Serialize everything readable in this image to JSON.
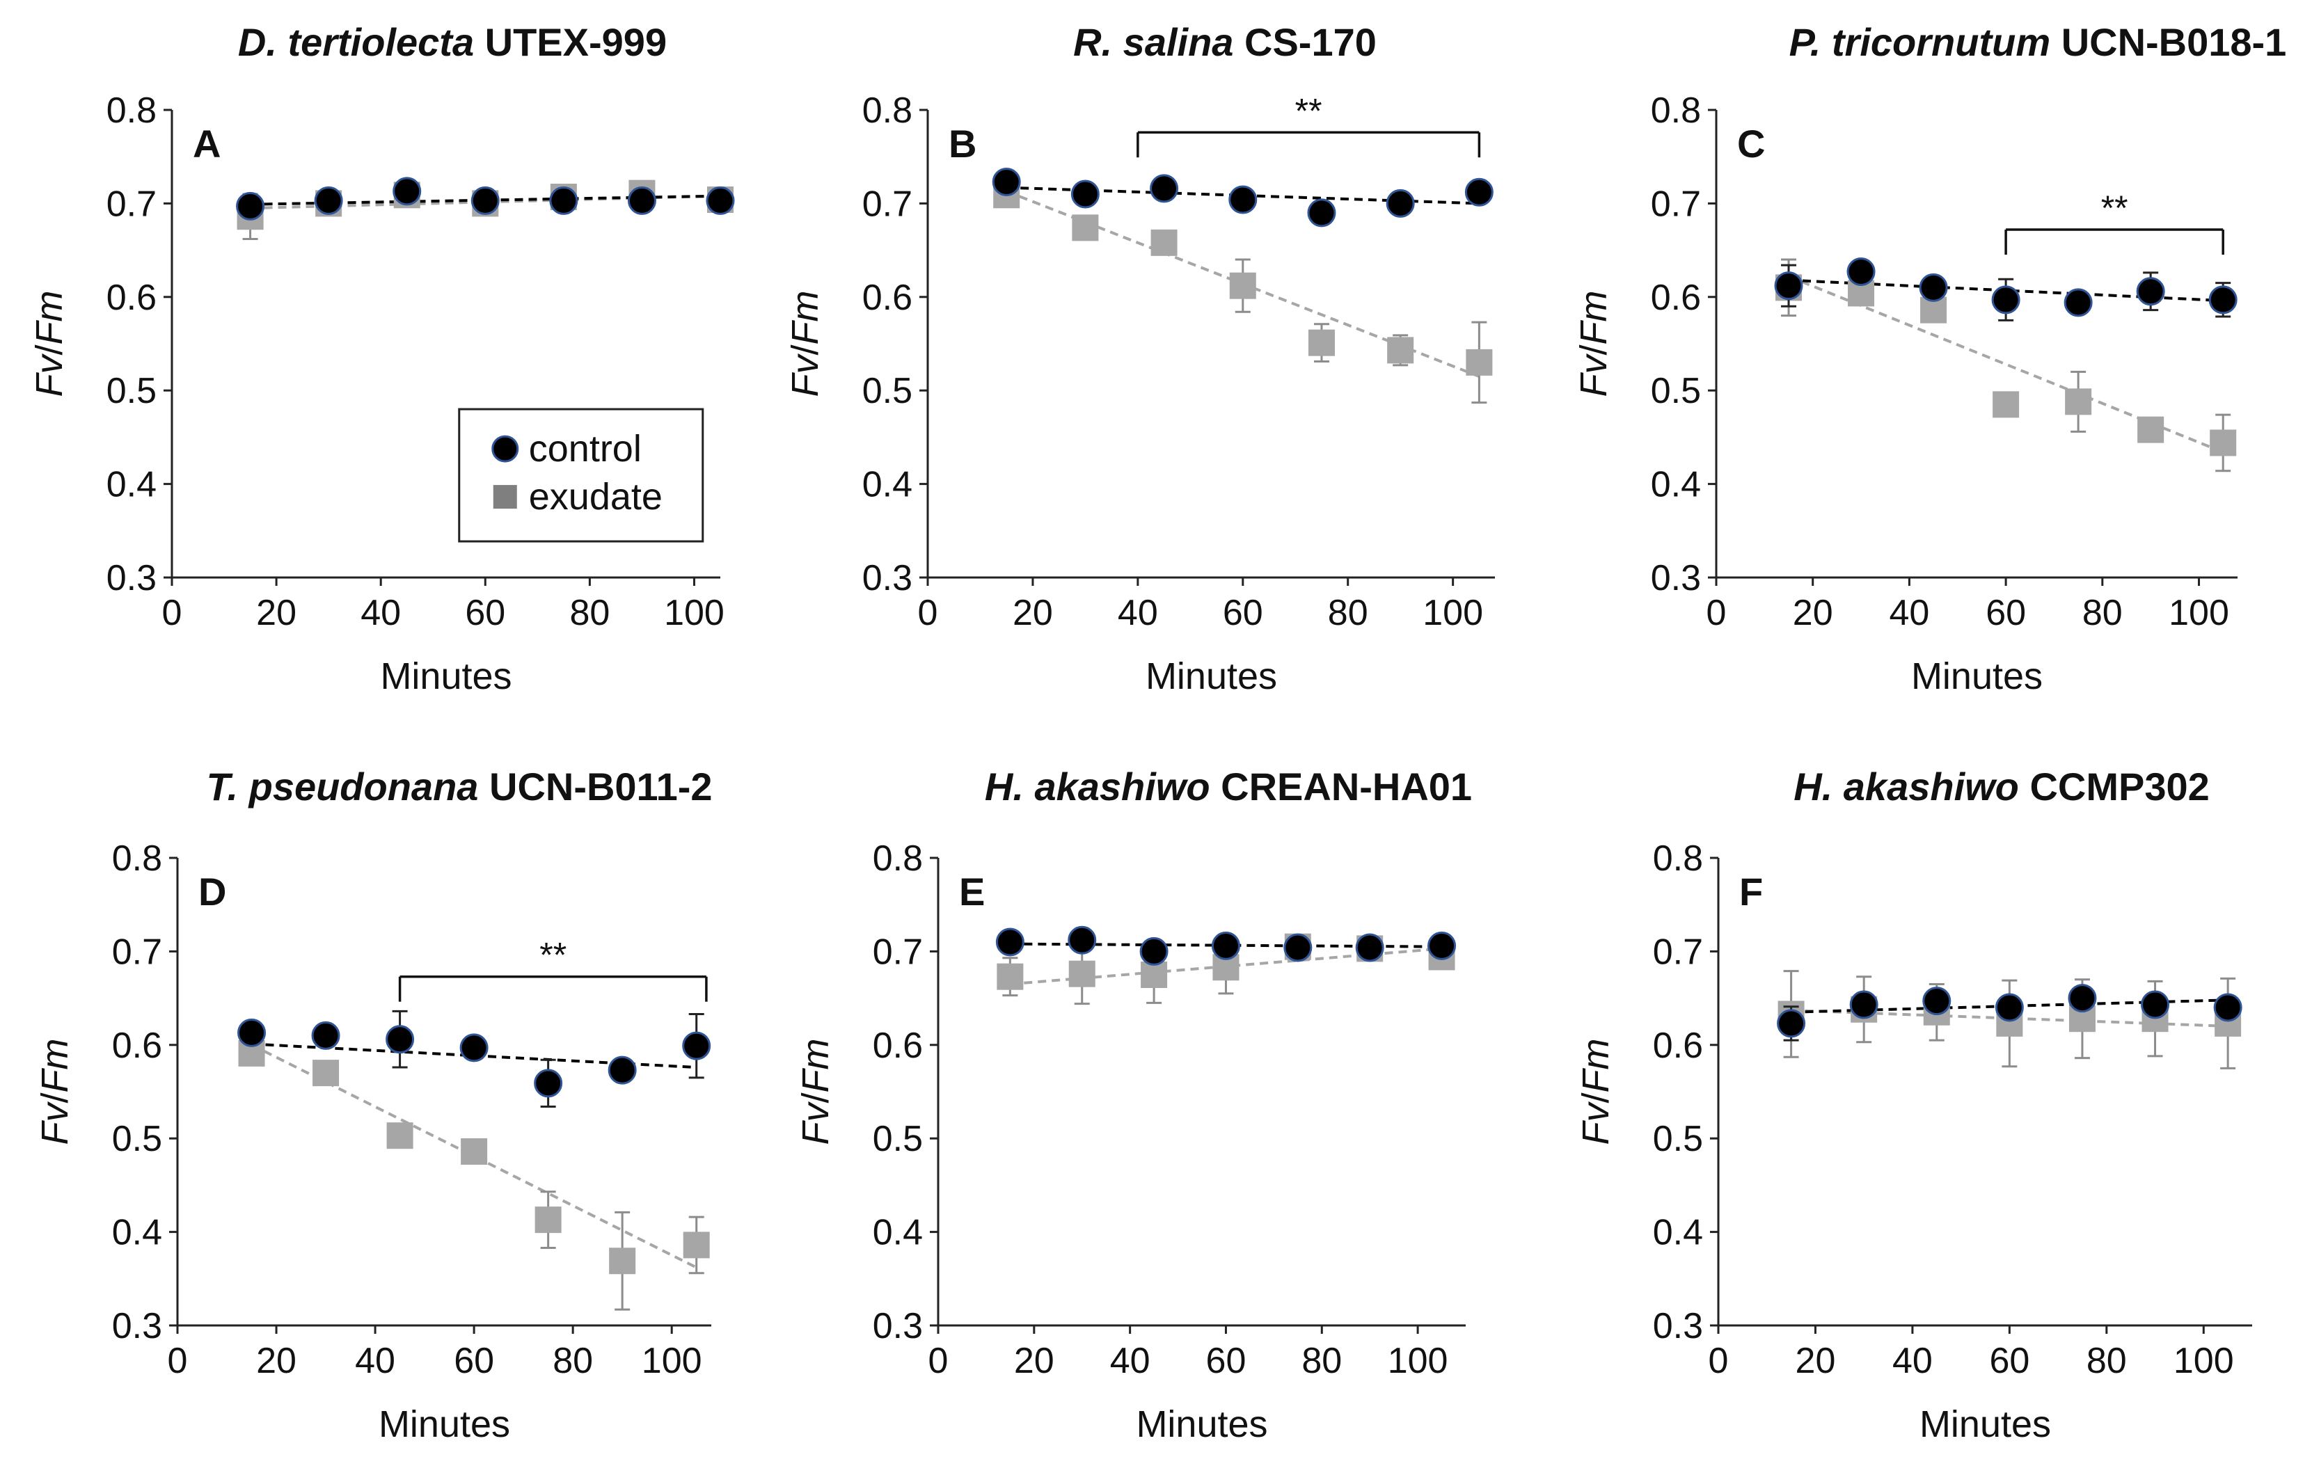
{
  "y_axis_label_parts": [
    "Fv",
    "/",
    "Fm"
  ],
  "legend": {
    "control": "control",
    "exudate": "exudate"
  },
  "colors": {
    "control": "#000000",
    "control_edge": "#2f5597",
    "exudate": "#a6a6a6",
    "control_trend": "#000000",
    "exudate_trend": "#a6a6a6"
  },
  "chart_data": [
    {
      "type": "scatter",
      "panel_letter": "A",
      "title_species": "D. tertiolecta",
      "title_strain": "UTEX-999",
      "xlabel": "Minutes",
      "ylabel": "Fv/Fm",
      "xlim": [
        0,
        105
      ],
      "ylim": [
        0.3,
        0.8
      ],
      "xticks": [
        "0",
        "20",
        "40",
        "60",
        "80",
        "100"
      ],
      "yticks": [
        "0.3",
        "0.4",
        "0.5",
        "0.6",
        "0.7",
        "0.8"
      ],
      "x": [
        15,
        30,
        45,
        60,
        75,
        90,
        105
      ],
      "series": [
        {
          "name": "control",
          "values": [
            0.697,
            0.703,
            0.713,
            0.703,
            0.703,
            0.703,
            0.703
          ],
          "err": [
            0,
            0,
            0,
            0,
            0,
            0,
            0
          ],
          "trend": [
            0.699,
            0.708
          ]
        },
        {
          "name": "exudate",
          "values": [
            0.686,
            0.7,
            0.709,
            0.7,
            0.707,
            0.711,
            0.704
          ],
          "err": [
            0.024,
            0,
            0,
            0,
            0,
            0,
            0
          ],
          "trend": [
            0.695,
            0.708
          ]
        }
      ],
      "significance": null,
      "legend_shown": true
    },
    {
      "type": "scatter",
      "panel_letter": "B",
      "title_species": "R. salina",
      "title_strain": "CS-170",
      "xlabel": "Minutes",
      "ylabel": "Fv/Fm",
      "xlim": [
        0,
        108
      ],
      "ylim": [
        0.3,
        0.8
      ],
      "xticks": [
        "0",
        "20",
        "40",
        "60",
        "80",
        "100"
      ],
      "yticks": [
        "0.3",
        "0.4",
        "0.5",
        "0.6",
        "0.7",
        "0.8"
      ],
      "x": [
        15,
        30,
        45,
        60,
        75,
        90,
        105
      ],
      "series": [
        {
          "name": "control",
          "values": [
            0.723,
            0.71,
            0.716,
            0.704,
            0.69,
            0.7,
            0.712
          ],
          "err": [
            0,
            0,
            0,
            0,
            0,
            0,
            0
          ],
          "trend": [
            0.717,
            0.7
          ]
        },
        {
          "name": "exudate",
          "values": [
            0.709,
            0.674,
            0.658,
            0.612,
            0.551,
            0.543,
            0.53
          ],
          "err": [
            0,
            0,
            0,
            0.028,
            0.02,
            0.016,
            0.043
          ],
          "trend": [
            0.713,
            0.515
          ]
        }
      ],
      "significance": {
        "label": "**",
        "x_start": 40,
        "x_end": 105,
        "y": 0.776
      },
      "legend_shown": false
    },
    {
      "type": "scatter",
      "panel_letter": "C",
      "title_species": "P. tricornutum",
      "title_strain": "UCN-B018-1",
      "xlabel": "Minutes",
      "ylabel": "Fv/Fm",
      "xlim": [
        0,
        108
      ],
      "ylim": [
        0.3,
        0.8
      ],
      "xticks": [
        "0",
        "20",
        "40",
        "60",
        "80",
        "100"
      ],
      "yticks": [
        "0.3",
        "0.4",
        "0.5",
        "0.6",
        "0.7",
        "0.8"
      ],
      "x": [
        15,
        30,
        45,
        60,
        75,
        90,
        105
      ],
      "series": [
        {
          "name": "control",
          "values": [
            0.612,
            0.627,
            0.61,
            0.597,
            0.594,
            0.606,
            0.597
          ],
          "err": [
            0.022,
            0,
            0,
            0.022,
            0,
            0.02,
            0.018
          ],
          "trend": [
            0.618,
            0.596
          ]
        },
        {
          "name": "exudate",
          "values": [
            0.61,
            0.604,
            0.586,
            0.485,
            0.488,
            0.458,
            0.444
          ],
          "err": [
            0.03,
            0,
            0,
            0,
            0.032,
            0,
            0.03
          ],
          "trend": [
            0.622,
            0.434
          ]
        }
      ],
      "significance": {
        "label": "**",
        "x_start": 60,
        "x_end": 105,
        "y": 0.672
      },
      "legend_shown": false
    },
    {
      "type": "scatter",
      "panel_letter": "D",
      "title_species": "T. pseudonana",
      "title_strain": "UCN-B011-2",
      "xlabel": "Minutes",
      "ylabel": "Fv/Fm",
      "xlim": [
        0,
        108
      ],
      "ylim": [
        0.3,
        0.8
      ],
      "xticks": [
        "0",
        "20",
        "40",
        "60",
        "80",
        "100"
      ],
      "yticks": [
        "0.3",
        "0.4",
        "0.5",
        "0.6",
        "0.7",
        "0.8"
      ],
      "x": [
        15,
        30,
        45,
        60,
        75,
        90,
        105
      ],
      "series": [
        {
          "name": "control",
          "values": [
            0.613,
            0.61,
            0.606,
            0.597,
            0.559,
            0.573,
            0.599
          ],
          "err": [
            0,
            0,
            0.03,
            0,
            0.025,
            0,
            0.034
          ],
          "trend": [
            0.601,
            0.576
          ]
        },
        {
          "name": "exudate",
          "values": [
            0.591,
            0.57,
            0.503,
            0.486,
            0.413,
            0.369,
            0.386
          ],
          "err": [
            0,
            0,
            0,
            0,
            0.03,
            0.052,
            0.03
          ],
          "trend": [
            0.6,
            0.362
          ]
        }
      ],
      "significance": {
        "label": "**",
        "x_start": 45,
        "x_end": 107,
        "y": 0.673
      },
      "legend_shown": false
    },
    {
      "type": "scatter",
      "panel_letter": "E",
      "title_species": "H. akashiwo",
      "title_strain": "CREAN-HA01",
      "xlabel": "Minutes",
      "ylabel": "Fv/Fm",
      "xlim": [
        0,
        110
      ],
      "ylim": [
        0.3,
        0.8
      ],
      "xticks": [
        "0",
        "20",
        "40",
        "60",
        "80",
        "100"
      ],
      "yticks": [
        "0.3",
        "0.4",
        "0.5",
        "0.6",
        "0.7",
        "0.8"
      ],
      "x": [
        15,
        30,
        45,
        60,
        75,
        90,
        105
      ],
      "series": [
        {
          "name": "control",
          "values": [
            0.71,
            0.712,
            0.7,
            0.706,
            0.704,
            0.704,
            0.706
          ],
          "err": [
            0,
            0,
            0,
            0,
            0,
            0,
            0
          ],
          "trend": [
            0.708,
            0.705
          ]
        },
        {
          "name": "exudate",
          "values": [
            0.673,
            0.676,
            0.675,
            0.683,
            0.705,
            0.703,
            0.694
          ],
          "err": [
            0.02,
            0.032,
            0.03,
            0.028,
            0,
            0,
            0
          ],
          "trend": [
            0.665,
            0.703
          ]
        }
      ],
      "significance": null,
      "legend_shown": false
    },
    {
      "type": "scatter",
      "panel_letter": "F",
      "title_species": "H. akashiwo",
      "title_strain": "CCMP302",
      "xlabel": "Minutes",
      "ylabel": "Fv/Fm",
      "xlim": [
        0,
        110
      ],
      "ylim": [
        0.3,
        0.8
      ],
      "xticks": [
        "0",
        "20",
        "40",
        "60",
        "80",
        "100"
      ],
      "yticks": [
        "0.3",
        "0.4",
        "0.5",
        "0.6",
        "0.7",
        "0.8"
      ],
      "x": [
        15,
        30,
        45,
        60,
        75,
        90,
        105
      ],
      "series": [
        {
          "name": "control",
          "values": [
            0.623,
            0.643,
            0.647,
            0.64,
            0.65,
            0.643,
            0.64
          ],
          "err": [
            0.018,
            0,
            0,
            0,
            0,
            0,
            0
          ],
          "trend": [
            0.635,
            0.648
          ]
        },
        {
          "name": "exudate",
          "values": [
            0.633,
            0.638,
            0.635,
            0.623,
            0.628,
            0.628,
            0.623
          ],
          "err": [
            0.046,
            0.035,
            0.03,
            0.046,
            0.042,
            0.04,
            0.048
          ],
          "trend": [
            0.637,
            0.62
          ]
        }
      ],
      "significance": null,
      "legend_shown": false
    }
  ]
}
